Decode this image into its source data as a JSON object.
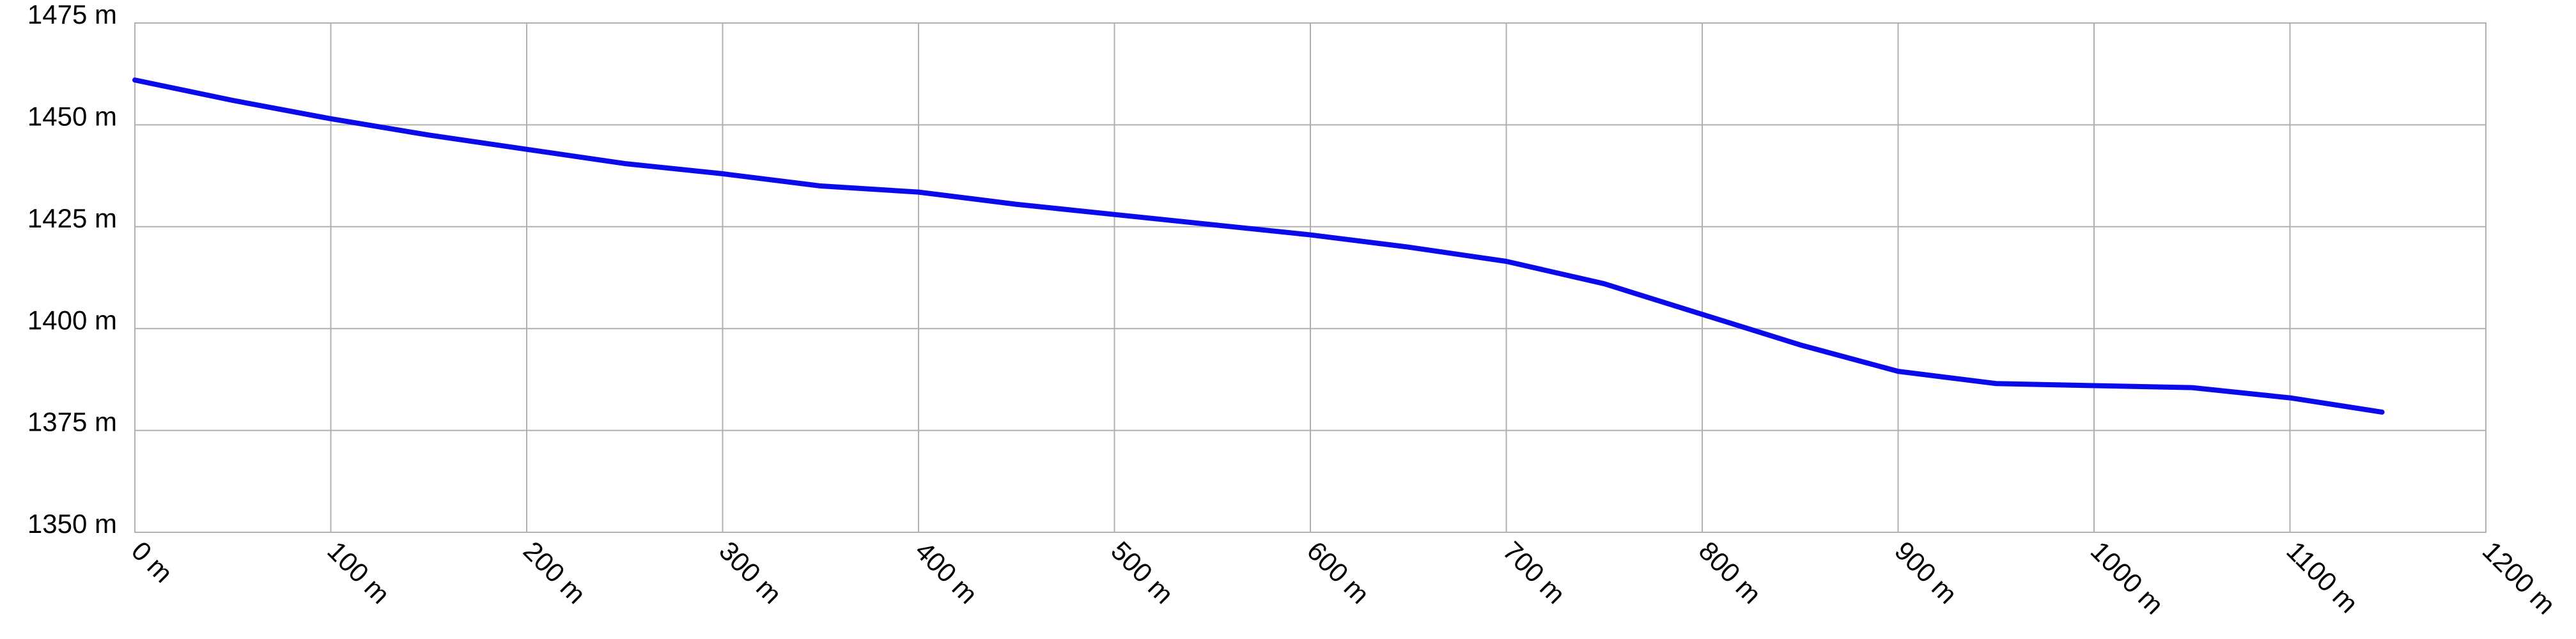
{
  "chart_data": {
    "type": "line",
    "x": [
      0,
      50,
      100,
      150,
      200,
      250,
      300,
      350,
      400,
      450,
      500,
      550,
      600,
      650,
      700,
      750,
      800,
      850,
      900,
      950,
      1000,
      1050,
      1100,
      1147
    ],
    "series": [
      {
        "color": "#0a0aeb",
        "values": [
          1461,
          1456,
          1451.5,
          1447.5,
          1444,
          1440.5,
          1438,
          1435,
          1433.5,
          1430.5,
          1428,
          1425.5,
          1423,
          1420,
          1416.5,
          1411,
          1403.5,
          1396,
          1389.5,
          1386.5,
          1386,
          1385.5,
          1383,
          1379.5
        ]
      }
    ],
    "xlim": [
      0,
      1200
    ],
    "xticks": [
      {
        "value": 0,
        "label": "0 m"
      },
      {
        "value": 100,
        "label": "100 m"
      },
      {
        "value": 200,
        "label": "200 m"
      },
      {
        "value": 300,
        "label": "300 m"
      },
      {
        "value": 400,
        "label": "400 m"
      },
      {
        "value": 500,
        "label": "500 m"
      },
      {
        "value": 600,
        "label": "600 m"
      },
      {
        "value": 700,
        "label": "700 m"
      },
      {
        "value": 800,
        "label": "800 m"
      },
      {
        "value": 900,
        "label": "900 m"
      },
      {
        "value": 1000,
        "label": "1000 m"
      },
      {
        "value": 1100,
        "label": "1100 m"
      },
      {
        "value": 1200,
        "label": "1200 m"
      }
    ],
    "ylim": [
      1350,
      1475
    ],
    "yticks": [
      {
        "value": 1350,
        "label": "1350 m"
      },
      {
        "value": 1375,
        "label": "1375 m"
      },
      {
        "value": 1400,
        "label": "1400 m"
      },
      {
        "value": 1425,
        "label": "1425 m"
      },
      {
        "value": 1450,
        "label": "1450 m"
      },
      {
        "value": 1475,
        "label": "1475 m"
      }
    ],
    "grid": true
  }
}
